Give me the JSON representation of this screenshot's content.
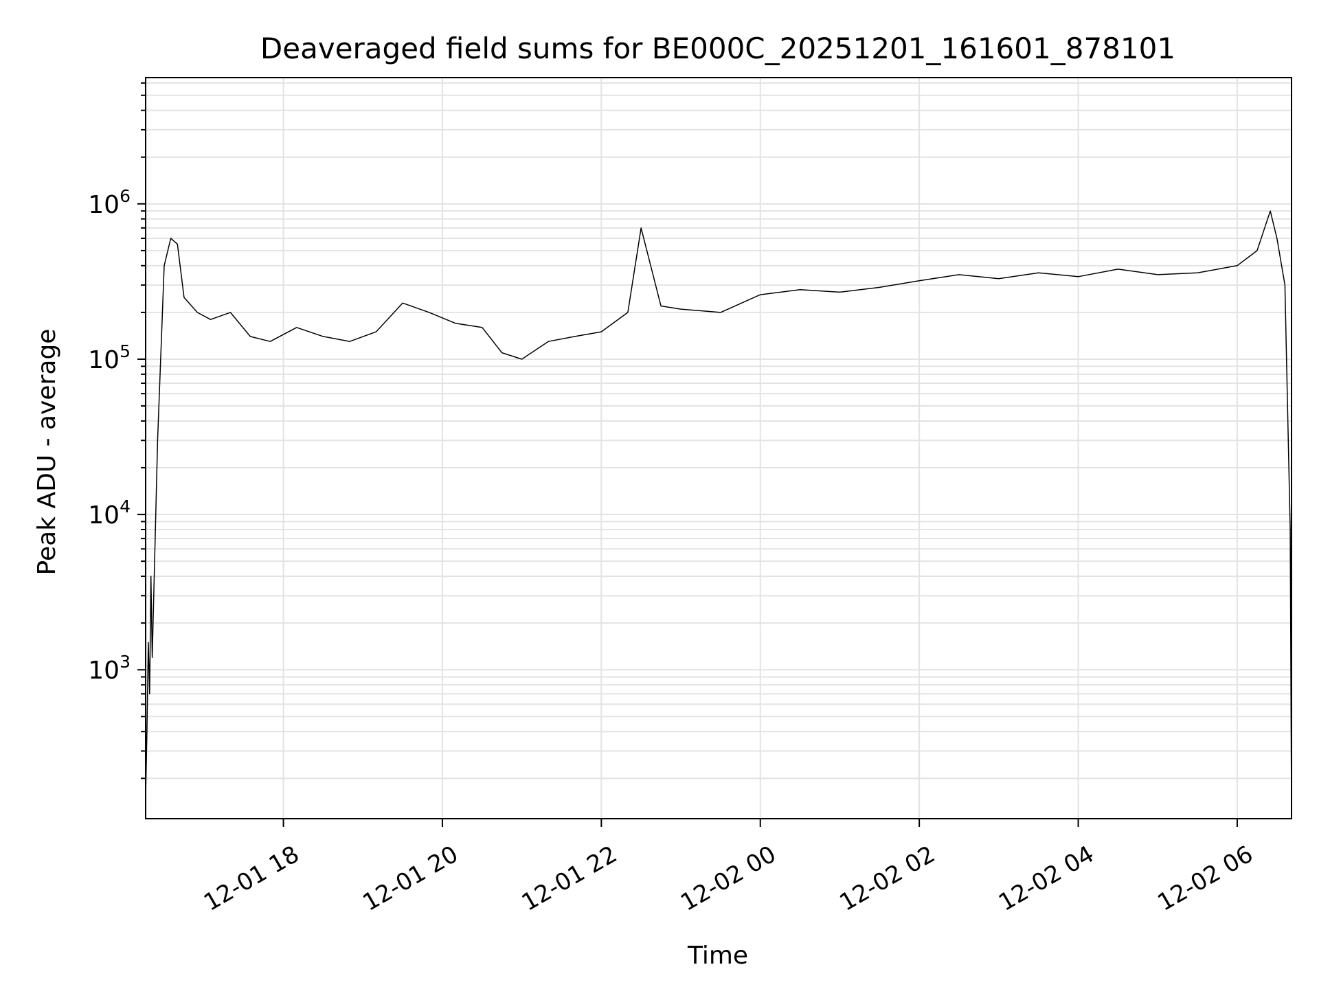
{
  "chart_data": {
    "type": "line",
    "title": "Deaveraged field sums for BE000C_20251201_161601_878101",
    "xlabel": "Time",
    "ylabel": "Peak ADU - average",
    "yscale": "log",
    "ylim": [
      110,
      6500000
    ],
    "xlim": [
      "2025-12-01 16:16",
      "2025-12-02 06:41"
    ],
    "grid": true,
    "x_ticks": [
      {
        "value": "2025-12-01 18:00",
        "label": "12-01 18"
      },
      {
        "value": "2025-12-01 20:00",
        "label": "12-01 20"
      },
      {
        "value": "2025-12-01 22:00",
        "label": "12-01 22"
      },
      {
        "value": "2025-12-02 00:00",
        "label": "12-02 00"
      },
      {
        "value": "2025-12-02 02:00",
        "label": "12-02 02"
      },
      {
        "value": "2025-12-02 04:00",
        "label": "12-02 04"
      },
      {
        "value": "2025-12-02 06:00",
        "label": "12-02 06"
      }
    ],
    "y_ticks": [
      {
        "value": 1000,
        "base": "10",
        "exp": "3"
      },
      {
        "value": 10000,
        "base": "10",
        "exp": "4"
      },
      {
        "value": 100000,
        "base": "10",
        "exp": "5"
      },
      {
        "value": 1000000,
        "base": "10",
        "exp": "6"
      }
    ],
    "series": [
      {
        "color": "#000000",
        "x": [
          "2025-12-01 16:16",
          "2025-12-01 16:17",
          "2025-12-01 16:18",
          "2025-12-01 16:19",
          "2025-12-01 16:20",
          "2025-12-01 16:21",
          "2025-12-01 16:25",
          "2025-12-01 16:30",
          "2025-12-01 16:35",
          "2025-12-01 16:40",
          "2025-12-01 16:45",
          "2025-12-01 16:55",
          "2025-12-01 17:05",
          "2025-12-01 17:20",
          "2025-12-01 17:35",
          "2025-12-01 17:50",
          "2025-12-01 18:10",
          "2025-12-01 18:30",
          "2025-12-01 18:50",
          "2025-12-01 19:10",
          "2025-12-01 19:30",
          "2025-12-01 19:50",
          "2025-12-01 20:10",
          "2025-12-01 20:30",
          "2025-12-01 20:45",
          "2025-12-01 21:00",
          "2025-12-01 21:20",
          "2025-12-01 21:40",
          "2025-12-01 22:00",
          "2025-12-01 22:20",
          "2025-12-01 22:30",
          "2025-12-01 22:45",
          "2025-12-01 23:00",
          "2025-12-01 23:30",
          "2025-12-02 00:00",
          "2025-12-02 00:30",
          "2025-12-02 01:00",
          "2025-12-02 01:30",
          "2025-12-02 02:00",
          "2025-12-02 02:30",
          "2025-12-02 03:00",
          "2025-12-02 03:30",
          "2025-12-02 04:00",
          "2025-12-02 04:30",
          "2025-12-02 05:00",
          "2025-12-02 05:30",
          "2025-12-02 06:00",
          "2025-12-02 06:15",
          "2025-12-02 06:25",
          "2025-12-02 06:30",
          "2025-12-02 06:36",
          "2025-12-02 06:38",
          "2025-12-02 06:40",
          "2025-12-02 06:41"
        ],
        "y": [
          150,
          400,
          1500,
          700,
          4000,
          1200,
          30000,
          400000,
          600000,
          550000,
          250000,
          200000,
          180000,
          200000,
          140000,
          130000,
          160000,
          140000,
          130000,
          150000,
          230000,
          200000,
          170000,
          160000,
          110000,
          100000,
          130000,
          140000,
          150000,
          200000,
          700000,
          220000,
          210000,
          200000,
          260000,
          280000,
          270000,
          290000,
          320000,
          350000,
          330000,
          360000,
          340000,
          380000,
          350000,
          360000,
          400000,
          500000,
          900000,
          600000,
          300000,
          50000,
          8000,
          120
        ]
      }
    ]
  }
}
